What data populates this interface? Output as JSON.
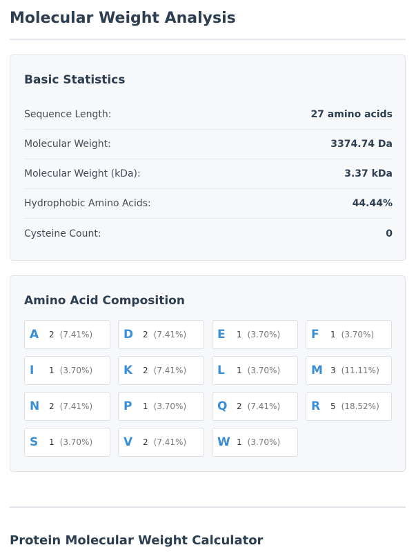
{
  "page_title": "Molecular Weight Analysis",
  "basic_statistics": {
    "title": "Basic Statistics",
    "rows": [
      {
        "label": "Sequence Length:",
        "value": "27 amino acids"
      },
      {
        "label": "Molecular Weight:",
        "value": "3374.74 Da"
      },
      {
        "label": "Molecular Weight (kDa):",
        "value": "3.37 kDa"
      },
      {
        "label": "Hydrophobic Amino Acids:",
        "value": "44.44%"
      },
      {
        "label": "Cysteine Count:",
        "value": "0"
      }
    ]
  },
  "composition": {
    "title": "Amino Acid Composition",
    "items": [
      {
        "letter": "A",
        "count": "2",
        "pct": "(7.41%)"
      },
      {
        "letter": "D",
        "count": "2",
        "pct": "(7.41%)"
      },
      {
        "letter": "E",
        "count": "1",
        "pct": "(3.70%)"
      },
      {
        "letter": "F",
        "count": "1",
        "pct": "(3.70%)"
      },
      {
        "letter": "I",
        "count": "1",
        "pct": "(3.70%)"
      },
      {
        "letter": "K",
        "count": "2",
        "pct": "(7.41%)"
      },
      {
        "letter": "L",
        "count": "1",
        "pct": "(3.70%)"
      },
      {
        "letter": "M",
        "count": "3",
        "pct": "(11.11%)"
      },
      {
        "letter": "N",
        "count": "2",
        "pct": "(7.41%)"
      },
      {
        "letter": "P",
        "count": "1",
        "pct": "(3.70%)"
      },
      {
        "letter": "Q",
        "count": "2",
        "pct": "(7.41%)"
      },
      {
        "letter": "R",
        "count": "5",
        "pct": "(18.52%)"
      },
      {
        "letter": "S",
        "count": "1",
        "pct": "(3.70%)"
      },
      {
        "letter": "V",
        "count": "2",
        "pct": "(7.41%)"
      },
      {
        "letter": "W",
        "count": "1",
        "pct": "(3.70%)"
      }
    ]
  },
  "next_section_title": "Protein Molecular Weight Calculator",
  "colors": {
    "accent": "#3a8fd6",
    "heading": "#2c3e50",
    "card_bg": "#f7f8fa"
  }
}
